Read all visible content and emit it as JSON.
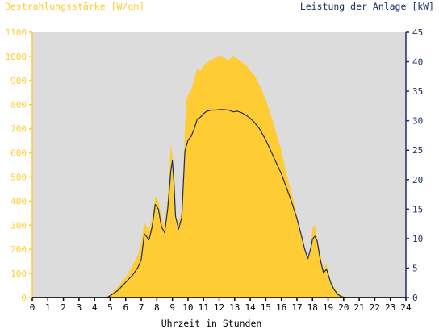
{
  "chart_data": {
    "type": "area",
    "left_axis_label": "Bestrahlungsstärke [W/qm]",
    "right_axis_label": "Leistung der Anlage [kW]",
    "xlabel": "Uhrzeit in Stunden",
    "x_ticks": [
      "0",
      "1",
      "2",
      "3",
      "4",
      "5",
      "6",
      "7",
      "8",
      "9",
      "10",
      "11",
      "12",
      "13",
      "14",
      "15",
      "16",
      "17",
      "18",
      "19",
      "20",
      "21",
      "22",
      "23",
      "24"
    ],
    "y_left_ticks": [
      "0",
      "100",
      "200",
      "300",
      "400",
      "500",
      "600",
      "700",
      "800",
      "900",
      "1000",
      "1100"
    ],
    "y_right_ticks": [
      "0",
      "5",
      "10",
      "15",
      "20",
      "25",
      "30",
      "35",
      "40",
      "45"
    ],
    "xlim": [
      0,
      24
    ],
    "ylim_left": [
      0,
      1100
    ],
    "ylim_right": [
      0,
      45
    ],
    "grid": false,
    "colors": {
      "background": "#dcdcdc",
      "irradiance_fill": "#ffcc33",
      "power_line": "#1a2f66",
      "left_axis_text": "#ffcc33",
      "right_axis_text": "#1a2f66",
      "x_axis_text": "#000000"
    },
    "series": [
      {
        "name": "Bestrahlungsstärke",
        "axis": "left",
        "style": "area",
        "x": [
          0,
          4.6,
          5.0,
          5.5,
          6.0,
          6.5,
          6.8,
          7.0,
          7.2,
          7.5,
          7.7,
          7.9,
          8.1,
          8.3,
          8.5,
          8.7,
          8.8,
          8.9,
          9.0,
          9.1,
          9.2,
          9.4,
          9.6,
          9.8,
          9.9,
          10.0,
          10.2,
          10.4,
          10.6,
          10.8,
          11.0,
          11.2,
          11.5,
          11.8,
          12.0,
          12.3,
          12.6,
          12.9,
          13.2,
          13.5,
          13.8,
          14.0,
          14.3,
          14.6,
          15.0,
          15.3,
          15.6,
          16.0,
          16.3,
          16.6,
          17.0,
          17.3,
          17.5,
          17.7,
          17.9,
          18.0,
          18.15,
          18.3,
          18.5,
          18.7,
          18.9,
          19.0,
          19.2,
          19.4,
          19.6,
          19.8,
          20.0,
          20.3,
          20.6,
          21.0,
          24.0
        ],
        "y": [
          0,
          0,
          12,
          45,
          85,
          140,
          180,
          230,
          310,
          280,
          330,
          420,
          400,
          330,
          300,
          410,
          520,
          640,
          590,
          470,
          330,
          310,
          360,
          700,
          820,
          840,
          860,
          900,
          950,
          940,
          960,
          975,
          985,
          995,
          1000,
          995,
          985,
          1000,
          990,
          975,
          960,
          940,
          920,
          880,
          820,
          760,
          700,
          610,
          520,
          450,
          340,
          250,
          200,
          160,
          210,
          290,
          300,
          250,
          180,
          120,
          140,
          110,
          60,
          40,
          25,
          12,
          5,
          2,
          0,
          0,
          0
        ]
      },
      {
        "name": "Leistung",
        "axis": "right",
        "style": "line",
        "x": [
          0,
          4.8,
          5.0,
          5.5,
          6.0,
          6.5,
          6.8,
          7.0,
          7.2,
          7.5,
          7.7,
          7.9,
          8.1,
          8.3,
          8.5,
          8.7,
          8.9,
          9.0,
          9.1,
          9.2,
          9.4,
          9.6,
          9.8,
          10.0,
          10.2,
          10.4,
          10.6,
          10.8,
          11.0,
          11.2,
          11.5,
          11.8,
          12.0,
          12.3,
          12.6,
          12.9,
          13.2,
          13.5,
          13.8,
          14.0,
          14.3,
          14.6,
          15.0,
          15.3,
          15.6,
          16.0,
          16.3,
          16.6,
          17.0,
          17.3,
          17.5,
          17.7,
          17.9,
          18.0,
          18.15,
          18.3,
          18.5,
          18.7,
          18.9,
          19.0,
          19.2,
          19.4,
          19.6,
          19.8,
          20.0,
          20.3,
          20.6,
          21.0,
          24.0
        ],
        "y": [
          0,
          0,
          0.3,
          1.2,
          2.6,
          4.0,
          5.2,
          6.4,
          10.8,
          9.8,
          12.0,
          15.8,
          15.0,
          12.0,
          11.0,
          15.0,
          21.5,
          23.2,
          19.5,
          13.8,
          11.6,
          13.6,
          24.8,
          26.7,
          27.3,
          28.6,
          30.3,
          30.6,
          31.2,
          31.6,
          31.8,
          31.8,
          31.9,
          31.9,
          31.8,
          31.5,
          31.6,
          31.3,
          30.8,
          30.4,
          29.6,
          28.6,
          26.7,
          25.0,
          23.3,
          21.0,
          18.8,
          16.7,
          13.4,
          10.4,
          8.2,
          6.6,
          8.5,
          9.9,
          10.4,
          9.6,
          6.4,
          4.2,
          4.8,
          4.0,
          2.3,
          1.3,
          0.6,
          0.2,
          0.05,
          0,
          0,
          0,
          0
        ]
      }
    ]
  }
}
